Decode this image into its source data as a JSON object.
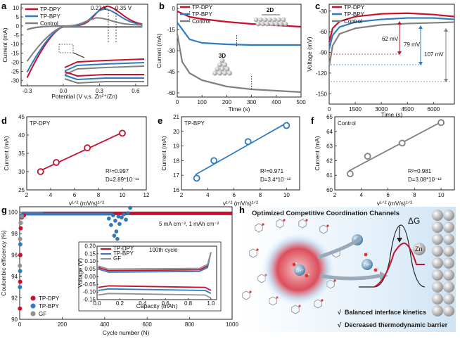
{
  "colors": {
    "tp_dpy": "#c8102e",
    "tp_bpy": "#2e7cbf",
    "control": "#808080",
    "gf": "#909090"
  },
  "panels": {
    "a": {
      "letter": "a",
      "xlabel": "Potential (V v.s. Zn²⁺/Zn)",
      "ylabel": "Current (mA)",
      "legend": [
        "TP-DPY",
        "TP-BPY",
        "Control"
      ],
      "annotations": [
        "0.27 V",
        "0.35 V"
      ],
      "xticks": [
        "-0.3",
        "0.0",
        "0.3",
        "0.6"
      ],
      "yticks": [
        "-30",
        "-25",
        "-20",
        "-15",
        "-10",
        "-5",
        "0",
        "5",
        "10"
      ]
    },
    "b": {
      "letter": "b",
      "xlabel": "Time (s)",
      "ylabel": "Current (mA)",
      "legend": [
        "TP-DPY",
        "TP-BPY",
        "Control"
      ],
      "label_2d": "2D",
      "label_3d": "3D",
      "xticks": [
        "0",
        "100",
        "200",
        "300",
        "400",
        "500"
      ],
      "yticks": [
        "0",
        "-15",
        "-30",
        "-45",
        "-60"
      ]
    },
    "c": {
      "letter": "c",
      "xlabel": "Time (s)",
      "ylabel": "Voltage (mV)",
      "legend": [
        "TP-DPY",
        "TP-BPY",
        "Control"
      ],
      "annotations": [
        "62 mV",
        "79 mV",
        "107 mV"
      ],
      "xticks": [
        "0",
        "1500",
        "3000",
        "4500",
        "6000"
      ],
      "yticks": [
        "-30",
        "-60",
        "-90",
        "-120",
        "-150"
      ]
    },
    "d": {
      "letter": "d",
      "series_label": "TP-DPY",
      "xlabel": "v¹ᐟ² (mV/s)¹ᐟ²",
      "ylabel": "Current (mA)",
      "r2": "R²=0.997",
      "dval": "D=2.89*10⁻¹¹",
      "xticks": [
        "2",
        "4",
        "6",
        "8",
        "10",
        "12"
      ],
      "yticks": [
        "25",
        "30",
        "35",
        "40",
        "45"
      ]
    },
    "e": {
      "letter": "e",
      "series_label": "TP-BPY",
      "xlabel": "v¹ᐟ² (mV/s)¹ᐟ²",
      "ylabel": "Current (mA)",
      "r2": "R²=0.971",
      "dval": "D=3.4*10⁻¹²",
      "xticks": [
        "2",
        "4",
        "6",
        "8",
        "10"
      ],
      "yticks": [
        "16",
        "17",
        "18",
        "19",
        "20",
        "21"
      ]
    },
    "f": {
      "letter": "f",
      "series_label": "Control",
      "xlabel": "v¹ᐟ² (mV/s)¹ᐟ²",
      "ylabel": "Current (mA)",
      "r2": "R²=0.981",
      "dval": "D=3.08*10⁻¹²",
      "xticks": [
        "2",
        "4",
        "6",
        "8",
        "10"
      ],
      "yticks": [
        "60",
        "61",
        "62",
        "63",
        "64",
        "65"
      ]
    },
    "g": {
      "letter": "g",
      "xlabel": "Cycle number (N)",
      "ylabel": "Coulombic efficiency (%)",
      "legend": [
        "TP-DPY",
        "TP-BPY",
        "GF"
      ],
      "condition": "5 mA cm⁻², 1 mAh cm⁻²",
      "xticks": [
        "0",
        "200",
        "400",
        "600",
        "800",
        "1000"
      ],
      "yticks": [
        "90",
        "92",
        "94",
        "96",
        "98",
        "100"
      ],
      "inset": {
        "xlabel": "Capacity (mAh)",
        "ylabel": "Voltage (V)",
        "title": "100th cycle",
        "legend": [
          "TP-DPY",
          "TP-BPY",
          "GF"
        ],
        "xticks": [
          "0.0",
          "0.2",
          "0.4",
          "0.6",
          "0.8",
          "1.0"
        ],
        "yticks": [
          "0.20",
          "0.15",
          "0.10",
          "0.05",
          "0.00",
          "-0.05",
          "-0.10",
          "-0.15"
        ]
      }
    },
    "h": {
      "letter": "h",
      "title": "Optimized Competitive Coordination Channels",
      "delta_g": "ΔG",
      "zn_label": "Zn",
      "ion_label": "Zn²⁺",
      "bullets": [
        "Balanced interface kinetics",
        "Decreased thermodynamic barrier"
      ],
      "check": "√"
    }
  },
  "chart_data": [
    {
      "type": "line",
      "panel": "a",
      "title": "",
      "xlabel": "Potential (V v.s. Zn²⁺/Zn)",
      "ylabel": "Current (mA)",
      "xlim": [
        -0.35,
        0.7
      ],
      "ylim": [
        -33,
        12
      ],
      "series": [
        {
          "name": "TP-DPY",
          "peak_potential": 0.35,
          "peak_current": 10.5
        },
        {
          "name": "TP-BPY",
          "peak_potential": 0.33,
          "peak_current": 9.0
        },
        {
          "name": "Control",
          "peak_potential": 0.27,
          "peak_current": 4.0
        }
      ]
    },
    {
      "type": "line",
      "panel": "b",
      "xlabel": "Time (s)",
      "ylabel": "Current (mA)",
      "xlim": [
        0,
        500
      ],
      "ylim": [
        -63,
        3
      ],
      "series": [
        {
          "name": "TP-DPY",
          "x": [
            0,
            50,
            100,
            200,
            300,
            400,
            500
          ],
          "y": [
            -2,
            -6,
            -7.5,
            -9.5,
            -11,
            -12,
            -13
          ]
        },
        {
          "name": "TP-BPY",
          "x": [
            0,
            50,
            100,
            200,
            300,
            400,
            500
          ],
          "y": [
            -10,
            -22,
            -24.5,
            -25.5,
            -26,
            -26,
            -26
          ]
        },
        {
          "name": "Control",
          "x": [
            0,
            20,
            50,
            100,
            200,
            300,
            400,
            500
          ],
          "y": [
            -18,
            -38,
            -46,
            -51,
            -55.5,
            -57.5,
            -58.5,
            -59.5
          ]
        }
      ]
    },
    {
      "type": "line",
      "panel": "c",
      "xlabel": "Time (s)",
      "ylabel": "Voltage (mV)",
      "xlim": [
        0,
        7200
      ],
      "ylim": [
        -165,
        -20
      ],
      "series": [
        {
          "name": "TP-DPY",
          "x": [
            0,
            200,
            600,
            1500,
            3000,
            4500,
            6000,
            7200
          ],
          "y": [
            -75,
            -55,
            -45,
            -38,
            -34,
            -33,
            -35,
            -38
          ]
        },
        {
          "name": "TP-BPY",
          "x": [
            0,
            200,
            600,
            1500,
            3000,
            4500,
            6000,
            7200
          ],
          "y": [
            -85,
            -65,
            -53,
            -46,
            -42,
            -40,
            -40,
            -42
          ]
        },
        {
          "name": "Control",
          "x": [
            0,
            200,
            600,
            1500,
            3000,
            4500,
            6000,
            7200
          ],
          "y": [
            -110,
            -80,
            -63,
            -55,
            -50,
            -48,
            -47,
            -46
          ]
        }
      ],
      "overpotentials": {
        "TP-DPY": 62,
        "TP-BPY": 79,
        "Control": 107
      }
    },
    {
      "type": "scatter",
      "panel": "d",
      "series_label": "TP-DPY",
      "xlabel": "v¹ᐟ² (mV/s)¹ᐟ²",
      "ylabel": "Current (mA)",
      "xlim": [
        2,
        12
      ],
      "ylim": [
        25,
        45
      ],
      "x": [
        3.16,
        4.47,
        7.07,
        10.0
      ],
      "y": [
        30.0,
        32.5,
        36.5,
        40.5
      ],
      "r2": 0.997
    },
    {
      "type": "scatter",
      "panel": "e",
      "series_label": "TP-BPY",
      "xlabel": "v¹ᐟ² (mV/s)¹ᐟ²",
      "ylabel": "Current (mA)",
      "xlim": [
        2,
        11
      ],
      "ylim": [
        16,
        21
      ],
      "x": [
        3.16,
        4.47,
        7.07,
        10.0
      ],
      "y": [
        16.8,
        18.0,
        19.3,
        20.4
      ],
      "r2": 0.971
    },
    {
      "type": "scatter",
      "panel": "f",
      "series_label": "Control",
      "xlabel": "v¹ᐟ² (mV/s)¹ᐟ²",
      "ylabel": "Current (mA)",
      "xlim": [
        2,
        11
      ],
      "ylim": [
        60,
        65
      ],
      "x": [
        3.16,
        4.47,
        7.07,
        10.0
      ],
      "y": [
        61.1,
        62.3,
        63.2,
        64.6
      ],
      "r2": 0.981
    },
    {
      "type": "scatter",
      "panel": "g",
      "xlabel": "Cycle number (N)",
      "ylabel": "Coulombic efficiency (%)",
      "xlim": [
        0,
        1000
      ],
      "ylim": [
        90,
        100.5
      ],
      "series": [
        {
          "name": "TP-DPY",
          "x": [
            1,
            2,
            3,
            5,
            10,
            20,
            50,
            100,
            1000
          ],
          "y": [
            91,
            93.5,
            96,
            98.5,
            99.5,
            99.7,
            99.8,
            99.9,
            99.9
          ]
        },
        {
          "name": "TP-BPY",
          "x": [
            1,
            2,
            3,
            5,
            10,
            50,
            100,
            300,
            400,
            460,
            520
          ],
          "y": [
            93,
            94.5,
            97,
            99,
            99.7,
            99.8,
            99.8,
            99.8,
            99.5,
            97.5,
            99.5
          ]
        },
        {
          "name": "GF",
          "x": [
            1,
            2,
            5,
            10,
            50,
            100
          ],
          "y": [
            95,
            97.5,
            99,
            99.6,
            99.7,
            99.8
          ]
        }
      ]
    },
    {
      "type": "line",
      "panel": "g-inset",
      "title": "100th cycle",
      "xlabel": "Capacity (mAh)",
      "ylabel": "Voltage (V)",
      "xlim": [
        0,
        1.05
      ],
      "ylim": [
        -0.15,
        0.2
      ],
      "series": [
        {
          "name": "TP-DPY",
          "charge": 0.04,
          "discharge": -0.06
        },
        {
          "name": "TP-BPY",
          "charge": 0.03,
          "discharge": -0.08
        },
        {
          "name": "GF",
          "charge": 0.05,
          "discharge": -0.11
        }
      ]
    }
  ]
}
